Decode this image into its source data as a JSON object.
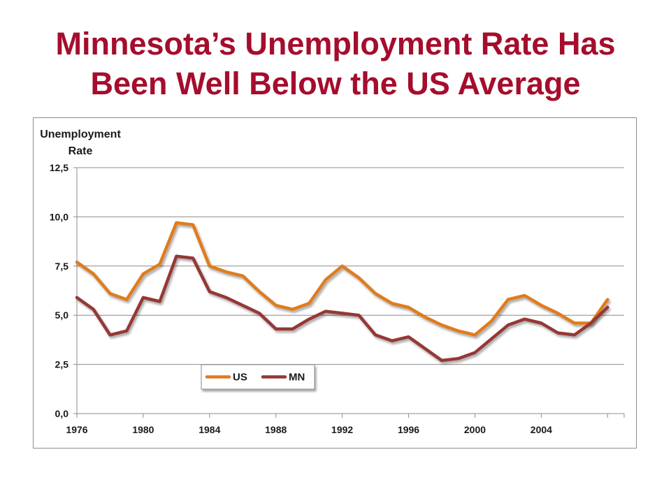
{
  "slide": {
    "title_line1": "Minnesota’s Unemployment Rate Has",
    "title_line2": "Been Well Below the US Average"
  },
  "chart_data": {
    "type": "line",
    "ylabel_line1": "Unemployment",
    "ylabel_line2": "Rate",
    "xlabel": "",
    "ylim": [
      0,
      12.5
    ],
    "xlim": [
      1976,
      2009
    ],
    "yticks": [
      "0,0",
      "2,5",
      "5,0",
      "7,5",
      "10,0",
      "12,5"
    ],
    "ytick_values": [
      0,
      2.5,
      5,
      7.5,
      10,
      12.5
    ],
    "xticks": [
      "1976",
      "1980",
      "1984",
      "1988",
      "1992",
      "1996",
      "2000",
      "2004"
    ],
    "xtick_values": [
      1976,
      1980,
      1984,
      1988,
      1992,
      1996,
      2000,
      2004
    ],
    "grid": true,
    "legend_position": "bottom-left",
    "x": [
      1976,
      1977,
      1978,
      1979,
      1980,
      1981,
      1982,
      1983,
      1984,
      1985,
      1986,
      1987,
      1988,
      1989,
      1990,
      1991,
      1992,
      1993,
      1994,
      1995,
      1996,
      1997,
      1998,
      1999,
      2000,
      2001,
      2002,
      2003,
      2004,
      2005,
      2006,
      2007,
      2008
    ],
    "series": [
      {
        "name": "US",
        "color": "#e07b1f",
        "values": [
          7.7,
          7.1,
          6.1,
          5.8,
          7.1,
          7.6,
          9.7,
          9.6,
          7.5,
          7.2,
          7.0,
          6.2,
          5.5,
          5.3,
          5.6,
          6.8,
          7.5,
          6.9,
          6.1,
          5.6,
          5.4,
          4.9,
          4.5,
          4.2,
          4.0,
          4.7,
          5.8,
          6.0,
          5.5,
          5.1,
          4.6,
          4.6,
          5.8
        ]
      },
      {
        "name": "MN",
        "color": "#953735",
        "values": [
          5.9,
          5.3,
          4.0,
          4.2,
          5.9,
          5.7,
          8.0,
          7.9,
          6.2,
          5.9,
          5.5,
          5.1,
          4.3,
          4.3,
          4.8,
          5.2,
          5.1,
          5.0,
          4.0,
          3.7,
          3.9,
          3.3,
          2.7,
          2.8,
          3.1,
          3.8,
          4.5,
          4.8,
          4.6,
          4.1,
          4.0,
          4.6,
          5.4
        ]
      }
    ]
  }
}
